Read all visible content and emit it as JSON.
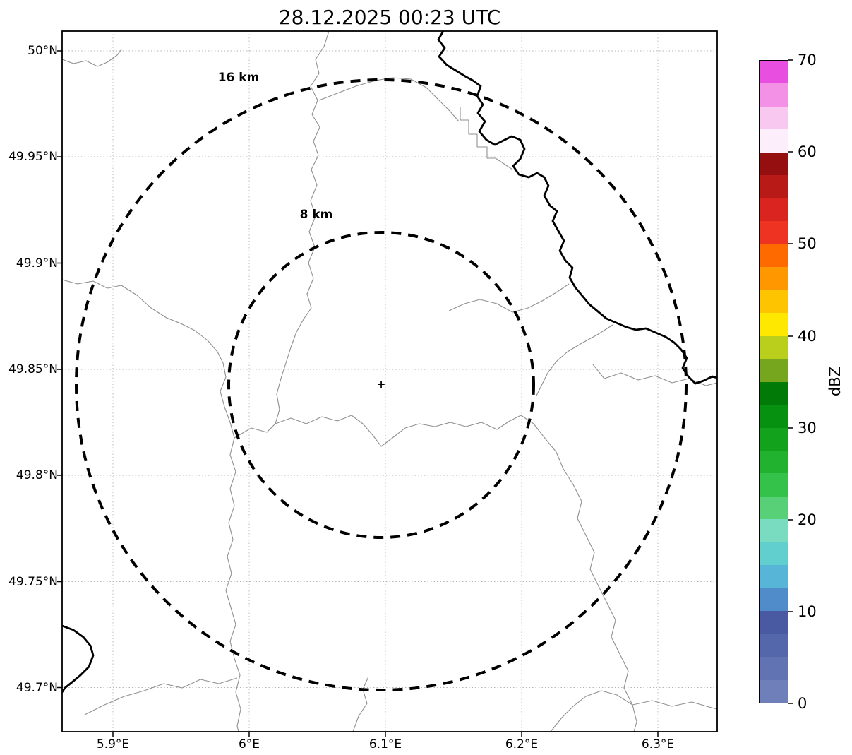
{
  "title": "28.12.2025 00:23 UTC",
  "map": {
    "y_axis_ticks": [
      "50°N",
      "49.95°N",
      "49.9°N",
      "49.85°N",
      "49.8°N",
      "49.75°N",
      "49.7°N"
    ],
    "x_axis_ticks": [
      "5.9°E",
      "6°E",
      "6.1°E",
      "6.2°E",
      "6.3°E"
    ],
    "range_rings": [
      {
        "label": "16 km"
      },
      {
        "label": "8 km"
      }
    ],
    "center_marker_glyph": "+"
  },
  "colorbar": {
    "label": "dBZ",
    "tick_labels": [
      "70",
      "60",
      "50",
      "40",
      "30",
      "20",
      "10",
      "0"
    ],
    "unit_min": 0,
    "unit_max": 70,
    "segment_colors_bottom_to_top": [
      "#6f7fba",
      "#6273b3",
      "#5567ab",
      "#495aa3",
      "#4f8cc9",
      "#57b6d8",
      "#62cfcf",
      "#79dcc0",
      "#57d077",
      "#35c24b",
      "#21b22f",
      "#12a21c",
      "#079110",
      "#027a08",
      "#76a51e",
      "#b9cf1b",
      "#ffe800",
      "#ffc400",
      "#ff9800",
      "#ff6a00",
      "#ef3323",
      "#d92420",
      "#b81a18",
      "#960f10",
      "#fceefa",
      "#f8c8f0",
      "#f291e6",
      "#e84fe0"
    ]
  }
}
